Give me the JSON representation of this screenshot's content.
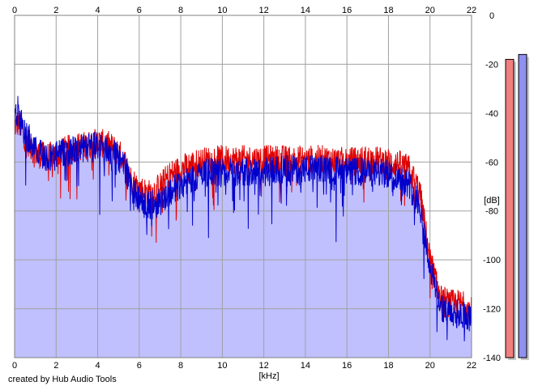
{
  "footer": {
    "credit": "created by Hub Audio Tools"
  },
  "chart_data": {
    "type": "area",
    "xlabel": "[kHz]",
    "ylabel": "[dB]",
    "xlim": [
      0,
      22
    ],
    "ylim": [
      -140,
      0
    ],
    "x_ticks": [
      0,
      2,
      4,
      6,
      8,
      10,
      12,
      14,
      16,
      18,
      20,
      22
    ],
    "y_ticks": [
      0,
      -20,
      -40,
      -60,
      -80,
      -100,
      -120,
      -140
    ],
    "grid": true,
    "colors": {
      "area_fill": "#c0c0ff",
      "red_series": "#e00000",
      "blue_series": "#0000cc",
      "grid": "#a0a0a0",
      "meter_red": "#f08080",
      "meter_blue": "#9090f0"
    },
    "series": [
      {
        "color": "#e00000",
        "x": [
          0,
          0.2,
          0.5,
          1,
          1.5,
          2,
          2.5,
          3,
          3.5,
          4,
          4.5,
          5,
          5.3,
          5.6,
          6,
          6.5,
          7,
          7.5,
          8,
          8.5,
          9,
          9.5,
          10,
          11,
          12,
          13,
          14,
          15,
          16,
          17,
          18,
          18.5,
          19,
          19.5,
          20,
          20.5,
          21,
          21.5,
          22
        ],
        "y": [
          -45,
          -44,
          -50,
          -56,
          -58,
          -57,
          -55,
          -54,
          -53,
          -52,
          -53,
          -56,
          -60,
          -67,
          -71,
          -73,
          -70,
          -65,
          -63,
          -61,
          -60,
          -59,
          -59,
          -59,
          -59,
          -59,
          -59,
          -59,
          -60,
          -59,
          -60,
          -61,
          -63,
          -72,
          -100,
          -116,
          -118,
          -118,
          -121
        ]
      },
      {
        "color": "#0000cc",
        "x": [
          0,
          0.2,
          0.5,
          1,
          1.5,
          2,
          2.5,
          3,
          3.5,
          4,
          4.5,
          5,
          5.3,
          5.6,
          6,
          6.5,
          7,
          7.5,
          8,
          8.5,
          9,
          9.5,
          10,
          11,
          12,
          13,
          14,
          15,
          16,
          17,
          18,
          18.5,
          19,
          19.5,
          20,
          20.5,
          21,
          21.5,
          22
        ],
        "y": [
          -42,
          -41,
          -48,
          -55,
          -58,
          -57,
          -56,
          -55,
          -54,
          -53,
          -55,
          -58,
          -62,
          -70,
          -76,
          -78,
          -76,
          -72,
          -69,
          -67,
          -65,
          -64,
          -64,
          -64,
          -64,
          -63,
          -63,
          -63,
          -64,
          -64,
          -65,
          -66,
          -69,
          -77,
          -103,
          -119,
          -122,
          -122,
          -124
        ]
      }
    ],
    "level_meters": [
      {
        "color": "#f08080",
        "value_db": -18
      },
      {
        "color": "#9090f0",
        "value_db": -16
      }
    ]
  }
}
